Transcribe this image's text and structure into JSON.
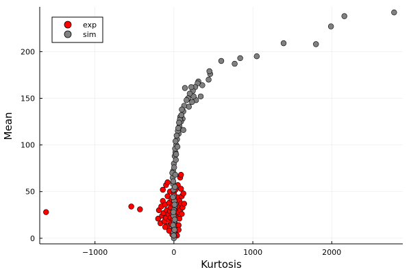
{
  "chart_data": {
    "type": "scatter",
    "xlabel": "Kurtosis",
    "ylabel": "Mean",
    "xlim": [
      -1700,
      2900
    ],
    "ylim": [
      -6,
      248
    ],
    "xticks": [
      -1000,
      0,
      1000,
      2000
    ],
    "xtick_labels": [
      "−1000",
      "0",
      "1000",
      "2000"
    ],
    "yticks": [
      0,
      50,
      100,
      150,
      200
    ],
    "ytick_labels": [
      "0",
      "50",
      "100",
      "150",
      "200"
    ],
    "grid": true,
    "legend_position": "top-left",
    "colors": {
      "exp": "#ff0000",
      "sim": "#808080"
    },
    "series": [
      {
        "name": "exp",
        "color": "#ff0000",
        "points": [
          [
            -1620,
            28
          ],
          [
            -540,
            34
          ],
          [
            -430,
            31
          ],
          [
            -200,
            21
          ],
          [
            -190,
            30
          ],
          [
            -170,
            16
          ],
          [
            -160,
            34
          ],
          [
            -150,
            24
          ],
          [
            -140,
            40
          ],
          [
            -140,
            52
          ],
          [
            -130,
            27
          ],
          [
            -120,
            18
          ],
          [
            -110,
            36
          ],
          [
            -100,
            57
          ],
          [
            -100,
            22
          ],
          [
            -90,
            30
          ],
          [
            -80,
            13
          ],
          [
            -80,
            45
          ],
          [
            -80,
            60
          ],
          [
            -70,
            26
          ],
          [
            -60,
            38
          ],
          [
            -60,
            19
          ],
          [
            -50,
            29
          ],
          [
            -50,
            50
          ],
          [
            -40,
            22
          ],
          [
            -40,
            33
          ],
          [
            -30,
            15
          ],
          [
            -30,
            42
          ],
          [
            -20,
            26
          ],
          [
            -20,
            9
          ],
          [
            -10,
            36
          ],
          [
            -10,
            20
          ],
          [
            0,
            48
          ],
          [
            0,
            28
          ],
          [
            10,
            17
          ],
          [
            10,
            39
          ],
          [
            20,
            24
          ],
          [
            20,
            52
          ],
          [
            30,
            31
          ],
          [
            30,
            12
          ],
          [
            40,
            44
          ],
          [
            40,
            22
          ],
          [
            50,
            57
          ],
          [
            50,
            34
          ],
          [
            60,
            28
          ],
          [
            60,
            14
          ],
          [
            70,
            40
          ],
          [
            70,
            21
          ],
          [
            80,
            65
          ],
          [
            80,
            30
          ],
          [
            90,
            53
          ],
          [
            90,
            37
          ],
          [
            100,
            45
          ],
          [
            100,
            26
          ],
          [
            110,
            33
          ],
          [
            120,
            48
          ],
          [
            130,
            37
          ],
          [
            -110,
            12
          ],
          [
            -60,
            8
          ],
          [
            20,
            7
          ],
          [
            60,
            9
          ],
          [
            -20,
            4
          ],
          [
            40,
            3
          ],
          [
            90,
            68
          ]
        ]
      },
      {
        "name": "sim",
        "color": "#808080",
        "points": [
          [
            2790,
            242
          ],
          [
            2160,
            238
          ],
          [
            1990,
            227
          ],
          [
            1800,
            208
          ],
          [
            1390,
            209
          ],
          [
            1050,
            195
          ],
          [
            840,
            193
          ],
          [
            770,
            187
          ],
          [
            600,
            190
          ],
          [
            460,
            176
          ],
          [
            450,
            179
          ],
          [
            440,
            170
          ],
          [
            360,
            164
          ],
          [
            340,
            152
          ],
          [
            310,
            168
          ],
          [
            300,
            166
          ],
          [
            280,
            148
          ],
          [
            270,
            162
          ],
          [
            250,
            152
          ],
          [
            240,
            158
          ],
          [
            230,
            146
          ],
          [
            220,
            162
          ],
          [
            200,
            155
          ],
          [
            190,
            141
          ],
          [
            180,
            150
          ],
          [
            160,
            148
          ],
          [
            140,
            161
          ],
          [
            130,
            142
          ],
          [
            120,
            136
          ],
          [
            110,
            128
          ],
          [
            100,
            138
          ],
          [
            90,
            125
          ],
          [
            80,
            130
          ],
          [
            70,
            120
          ],
          [
            60,
            112
          ],
          [
            50,
            115
          ],
          [
            40,
            106
          ],
          [
            30,
            100
          ],
          [
            20,
            92
          ],
          [
            10,
            88
          ],
          [
            0,
            80
          ],
          [
            -10,
            72
          ],
          [
            -15,
            65
          ],
          [
            -10,
            58
          ],
          [
            -5,
            52
          ],
          [
            0,
            45
          ],
          [
            5,
            40
          ],
          [
            10,
            34
          ],
          [
            0,
            30
          ],
          [
            -5,
            24
          ],
          [
            5,
            18
          ],
          [
            0,
            12
          ],
          [
            -5,
            6
          ],
          [
            5,
            2
          ],
          [
            0,
            0
          ],
          [
            20,
            104
          ],
          [
            35,
            110
          ],
          [
            55,
            118
          ],
          [
            75,
            127
          ],
          [
            95,
            132
          ],
          [
            120,
            116
          ],
          [
            15,
            96
          ],
          [
            25,
            84
          ],
          [
            45,
            98
          ],
          [
            -20,
            70
          ],
          [
            -8,
            61
          ],
          [
            12,
            55
          ],
          [
            -12,
            44
          ],
          [
            8,
            36
          ],
          [
            -6,
            28
          ],
          [
            10,
            20
          ],
          [
            -10,
            14
          ],
          [
            7,
            9
          ],
          [
            -3,
            3
          ],
          [
            3,
            76
          ],
          [
            18,
            68
          ],
          [
            28,
            90
          ],
          [
            65,
            124
          ]
        ]
      }
    ]
  }
}
